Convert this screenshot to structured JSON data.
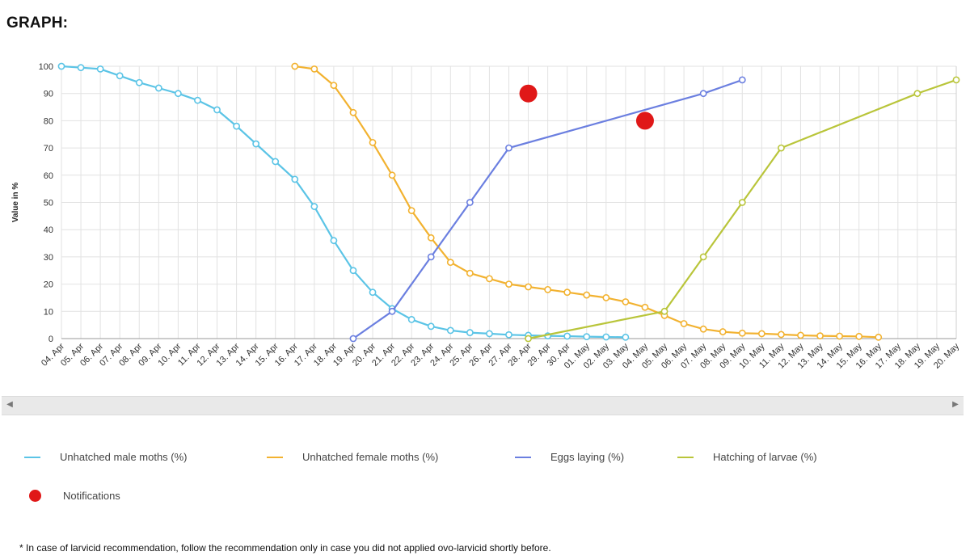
{
  "page": {
    "title": "GRAPH:",
    "footnote": "* In case of larvicid recommendation, follow the recommendation only in case you did not applied ovo-larvicid shortly before."
  },
  "legend": [
    {
      "label": "Unhatched male moths (%)",
      "color": "#5bc4e6",
      "shape": "line"
    },
    {
      "label": "Unhatched female moths (%)",
      "color": "#f2b230",
      "shape": "line"
    },
    {
      "label": "Eggs laying (%)",
      "color": "#6b7fe0",
      "shape": "line"
    },
    {
      "label": "Hatching of larvae (%)",
      "color": "#b9c53a",
      "shape": "line"
    },
    {
      "label": "Notifications",
      "color": "#e01818",
      "shape": "dot"
    }
  ],
  "chart_data": {
    "type": "line",
    "title": "",
    "xlabel": "",
    "ylabel": "Value in %",
    "ylim": [
      0,
      100
    ],
    "yticks": [
      0,
      10,
      20,
      30,
      40,
      50,
      60,
      70,
      80,
      90,
      100
    ],
    "grid": true,
    "categories": [
      "04. Apr",
      "05. Apr",
      "06. Apr",
      "07. Apr",
      "08. Apr",
      "09. Apr",
      "10. Apr",
      "11. Apr",
      "12. Apr",
      "13. Apr",
      "14. Apr",
      "15. Apr",
      "16. Apr",
      "17. Apr",
      "18. Apr",
      "19. Apr",
      "20. Apr",
      "21. Apr",
      "22. Apr",
      "23. Apr",
      "24. Apr",
      "25. Apr",
      "26. Apr",
      "27. Apr",
      "28. Apr",
      "29. Apr",
      "30. Apr",
      "01. May",
      "02. May",
      "03. May",
      "04. May",
      "05. May",
      "06. May",
      "07. May",
      "08. May",
      "09. May",
      "10. May",
      "11. May",
      "12. May",
      "13. May",
      "14. May",
      "15. May",
      "16. May",
      "17. May",
      "18. May",
      "19. May",
      "20. May"
    ],
    "series": [
      {
        "name": "Unhatched male moths (%)",
        "color": "#5bc4e6",
        "points": [
          [
            0,
            100
          ],
          [
            1,
            99.5
          ],
          [
            2,
            99
          ],
          [
            3,
            96.5
          ],
          [
            4,
            94
          ],
          [
            5,
            92
          ],
          [
            6,
            90
          ],
          [
            7,
            87.5
          ],
          [
            8,
            84
          ],
          [
            9,
            78
          ],
          [
            10,
            71.5
          ],
          [
            11,
            65
          ],
          [
            12,
            58.5
          ],
          [
            13,
            48.5
          ],
          [
            14,
            36
          ],
          [
            15,
            25
          ],
          [
            16,
            17
          ],
          [
            17,
            11
          ],
          [
            18,
            7
          ],
          [
            19,
            4.5
          ],
          [
            20,
            3
          ],
          [
            21,
            2.2
          ],
          [
            22,
            1.8
          ],
          [
            23,
            1.4
          ],
          [
            24,
            1.2
          ],
          [
            25,
            1
          ],
          [
            26,
            0.9
          ],
          [
            27,
            0.7
          ],
          [
            28,
            0.6
          ],
          [
            29,
            0.5
          ]
        ]
      },
      {
        "name": "Unhatched female moths (%)",
        "color": "#f2b230",
        "points": [
          [
            12,
            100
          ],
          [
            13,
            99
          ],
          [
            14,
            93
          ],
          [
            15,
            83
          ],
          [
            16,
            72
          ],
          [
            17,
            60
          ],
          [
            18,
            47
          ],
          [
            19,
            37
          ],
          [
            20,
            28
          ],
          [
            21,
            24
          ],
          [
            22,
            22
          ],
          [
            23,
            20
          ],
          [
            24,
            19
          ],
          [
            25,
            18
          ],
          [
            26,
            17
          ],
          [
            27,
            16
          ],
          [
            28,
            15
          ],
          [
            29,
            13.5
          ],
          [
            30,
            11.5
          ],
          [
            31,
            8.5
          ],
          [
            32,
            5.5
          ],
          [
            33,
            3.5
          ],
          [
            34,
            2.5
          ],
          [
            35,
            2
          ],
          [
            36,
            1.8
          ],
          [
            37,
            1.5
          ],
          [
            38,
            1.2
          ],
          [
            39,
            1
          ],
          [
            40,
            0.9
          ],
          [
            41,
            0.8
          ],
          [
            42,
            0.5
          ]
        ]
      },
      {
        "name": "Eggs laying (%)",
        "color": "#6b7fe0",
        "points": [
          [
            15,
            0
          ],
          [
            17,
            10
          ],
          [
            19,
            30
          ],
          [
            21,
            50
          ],
          [
            23,
            70
          ],
          [
            33,
            90
          ],
          [
            35,
            95
          ]
        ]
      },
      {
        "name": "Hatching of larvae (%)",
        "color": "#b9c53a",
        "points": [
          [
            24,
            0
          ],
          [
            31,
            10
          ],
          [
            33,
            30
          ],
          [
            35,
            50
          ],
          [
            37,
            70
          ],
          [
            44,
            90
          ],
          [
            46,
            95
          ]
        ]
      }
    ],
    "notifications": [
      {
        "x": 24,
        "y": 90
      },
      {
        "x": 30,
        "y": 80
      }
    ]
  }
}
